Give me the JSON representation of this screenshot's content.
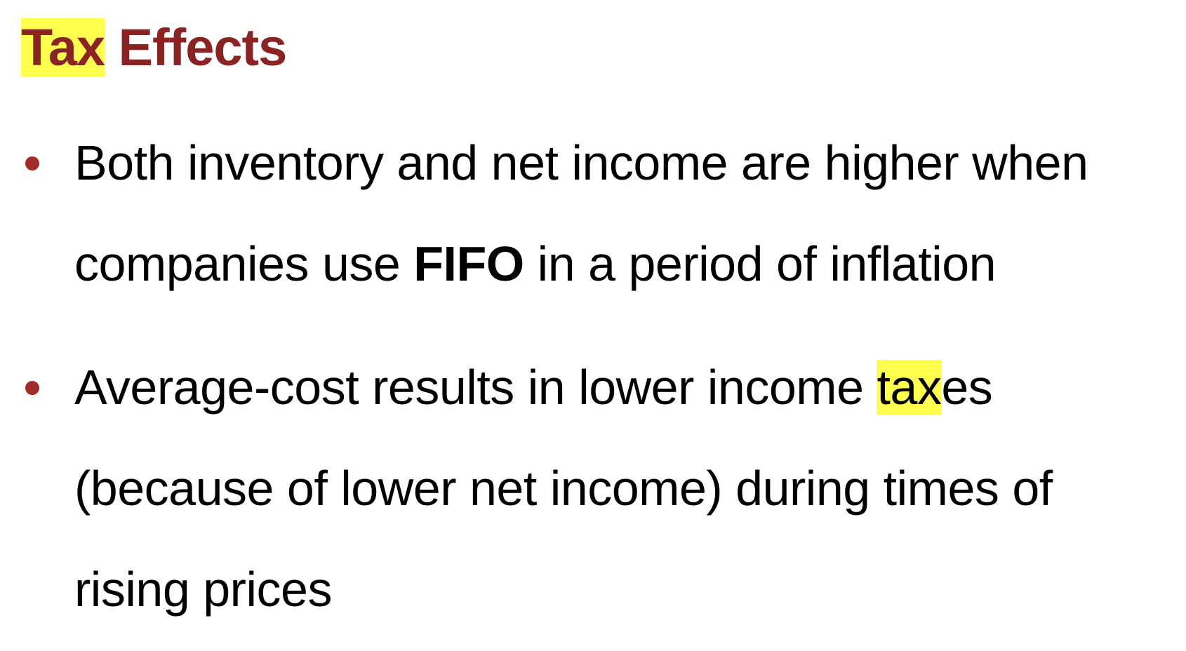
{
  "title": {
    "highlighted": "Tax",
    "rest": " Effects"
  },
  "colors": {
    "title": "#8b2323",
    "bullet": "#a52a2a",
    "highlight": "#ffff4d"
  },
  "bullets": [
    {
      "line1": "Both inventory and net income are higher when",
      "line2_before": "companies use ",
      "line2_bold": "FIFO",
      "line2_after": " in a period of inflation"
    },
    {
      "line1_before": "Average-cost results in lower income ",
      "line1_highlight": "tax",
      "line1_after": "es",
      "line2": "(because of lower net income) during times of",
      "line3": "rising prices"
    }
  ]
}
